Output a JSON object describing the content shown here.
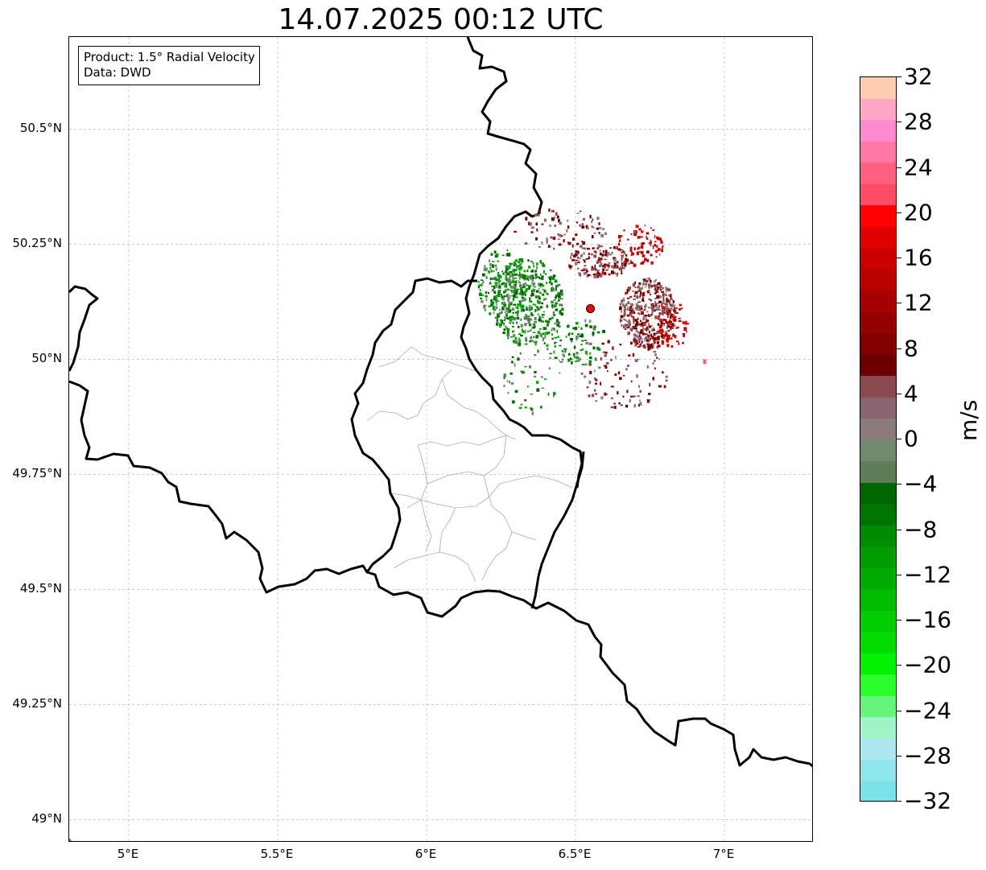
{
  "title": "14.07.2025 00:12 UTC",
  "info": {
    "product": "Product: 1.5° Radial Velocity",
    "source": "Data: DWD"
  },
  "map": {
    "lat_labels": [
      "50.5°N",
      "50.25°N",
      "50°N",
      "49.75°N",
      "49.5°N",
      "49.25°N",
      "49°N"
    ],
    "lat_values": [
      50.5,
      50.25,
      50.0,
      49.75,
      49.5,
      49.25,
      49.0
    ],
    "lon_labels": [
      "5°E",
      "5.5°E",
      "6°E",
      "6.5°E",
      "7°E"
    ],
    "lon_values": [
      5.0,
      5.5,
      6.0,
      6.5,
      7.0
    ],
    "extent": {
      "lon_min": 4.8,
      "lon_max": 7.3,
      "lat_min": 48.95,
      "lat_max": 50.7
    },
    "gridlines": true,
    "radar_site": {
      "lon": 6.55,
      "lat": 50.11,
      "color": "#ff0000"
    }
  },
  "colorbar": {
    "unit": "m/s",
    "min": -32,
    "max": 32,
    "tick_labels": [
      "32",
      "28",
      "24",
      "20",
      "16",
      "12",
      "8",
      "4",
      "0",
      "−4",
      "−8",
      "−12",
      "−16",
      "−20",
      "−24",
      "−28",
      "−32"
    ],
    "colors_top_to_bottom": [
      "#ffcdb0",
      "#ffa8c4",
      "#ff8ad0",
      "#ff78a8",
      "#ff6080",
      "#ff4c66",
      "#ff0000",
      "#e00000",
      "#cc0000",
      "#bb0000",
      "#a80000",
      "#940000",
      "#800000",
      "#6a0000",
      "#8a4a50",
      "#8a6470",
      "#8a7a7a",
      "#6f8a6e",
      "#5c7f58",
      "#006400",
      "#007400",
      "#008c00",
      "#009c00",
      "#00ac00",
      "#00bc00",
      "#00cc00",
      "#00dc00",
      "#00f200",
      "#2cff2c",
      "#66f57a",
      "#a0f5c8",
      "#aee8ee",
      "#8ee6ec",
      "#7ae2e8"
    ]
  },
  "chart_data": {
    "type": "heatmap",
    "title": "14.07.2025 00:12 UTC",
    "xlabel": "",
    "ylabel": "",
    "xlim": [
      4.8,
      7.3
    ],
    "ylim": [
      48.95,
      50.7
    ],
    "colorbar_label": "m/s",
    "colorbar_range": [
      -32,
      32
    ]
  }
}
